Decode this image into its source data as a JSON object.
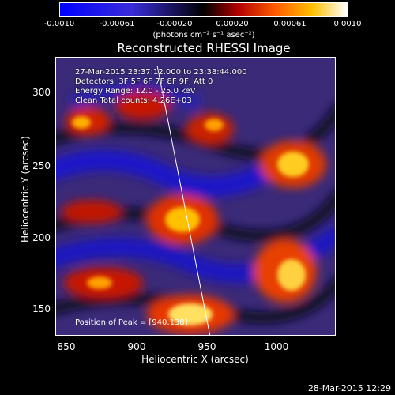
{
  "colorbar": {
    "ticks": [
      "-0.0010",
      "-0.00061",
      "-0.00020",
      "0.00020",
      "0.00061",
      "0.0010"
    ],
    "units": "(photons cm⁻² s⁻¹ asec⁻²)"
  },
  "chart_data": {
    "type": "heatmap",
    "title": "Reconstructed RHESSI Image",
    "xlabel": "Heliocentric X (arcsec)",
    "ylabel": "Heliocentric Y (arcsec)",
    "xlim": [
      850,
      1040
    ],
    "ylim": [
      133,
      328
    ],
    "xticks": [
      "850",
      "900",
      "950",
      "1000"
    ],
    "yticks": [
      "150",
      "200",
      "250",
      "300"
    ],
    "colorscale_range": [
      -0.001,
      0.001
    ],
    "peak_position": [
      940,
      138
    ],
    "annotations": {
      "time": "27-Mar-2015 23:37:12.000 to 23:38:44.000",
      "detectors": "Detectors: 3F 5F 6F 7F 8F 9F, Att 0",
      "energy": "Energy Range: 12.0 - 25.0 keV",
      "method": "Clean     Total counts: 4.26E+03",
      "peak": "Position of Peak = [940,138]"
    }
  },
  "timestamp": "28-Mar-2015 12:29"
}
